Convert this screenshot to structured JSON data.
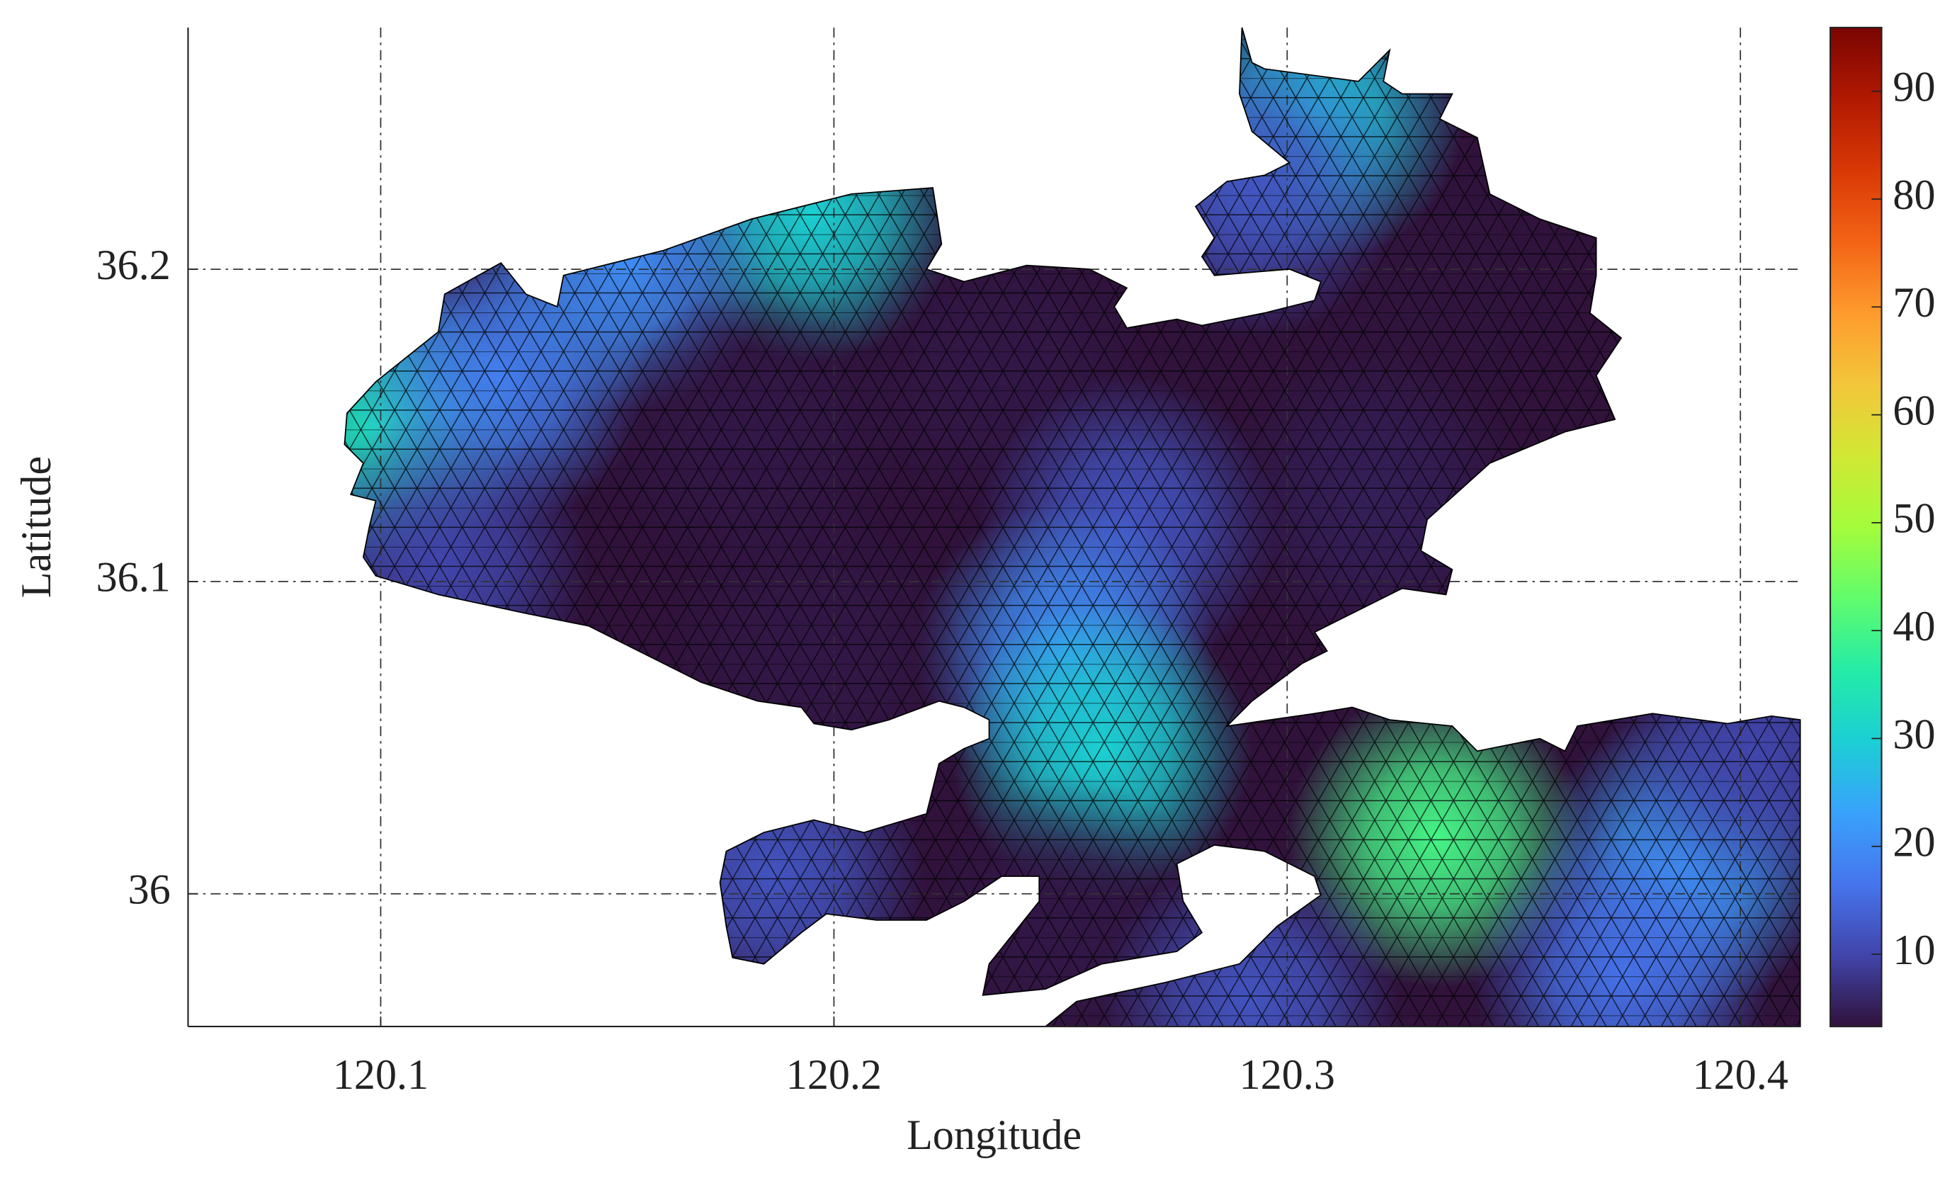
{
  "chart_data": {
    "type": "mesh",
    "xlabel": "Longitude",
    "ylabel": "Latitude",
    "xlim": [
      120.0575,
      120.4132
    ],
    "xticks": [
      120.1,
      120.2,
      120.3,
      120.4
    ],
    "ylim": [
      35.9575,
      36.2774
    ],
    "yticks": [
      36,
      36.1,
      36.2
    ],
    "grid": true,
    "colormap": "turbo",
    "clim": [
      3.3,
      95.9
    ],
    "cticks": [
      10,
      20,
      30,
      40,
      50,
      60,
      70,
      80,
      90
    ],
    "x": [
      120.099,
      120.126,
      120.195,
      120.154,
      120.182,
      120.237,
      120.333,
      120.306,
      120.292,
      120.265,
      120.251,
      120.259,
      120.333,
      120.388,
      120.374,
      120.195,
      120.319,
      120.187,
      120.251,
      120.292,
      120.403,
      120.113
    ],
    "y": [
      36.15,
      36.166,
      36.218,
      36.202,
      36.146,
      36.166,
      36.194,
      36.25,
      36.226,
      36.118,
      36.078,
      36.046,
      36.018,
      36.01,
      35.974,
      36.078,
      36.126,
      36.006,
      35.99,
      35.966,
      36.046,
      36.106
    ],
    "values": [
      33,
      18,
      30,
      20,
      4,
      4,
      3.5,
      28,
      12,
      12,
      20,
      30,
      40,
      22,
      16,
      4,
      5,
      12,
      4,
      12,
      10,
      10
    ]
  }
}
